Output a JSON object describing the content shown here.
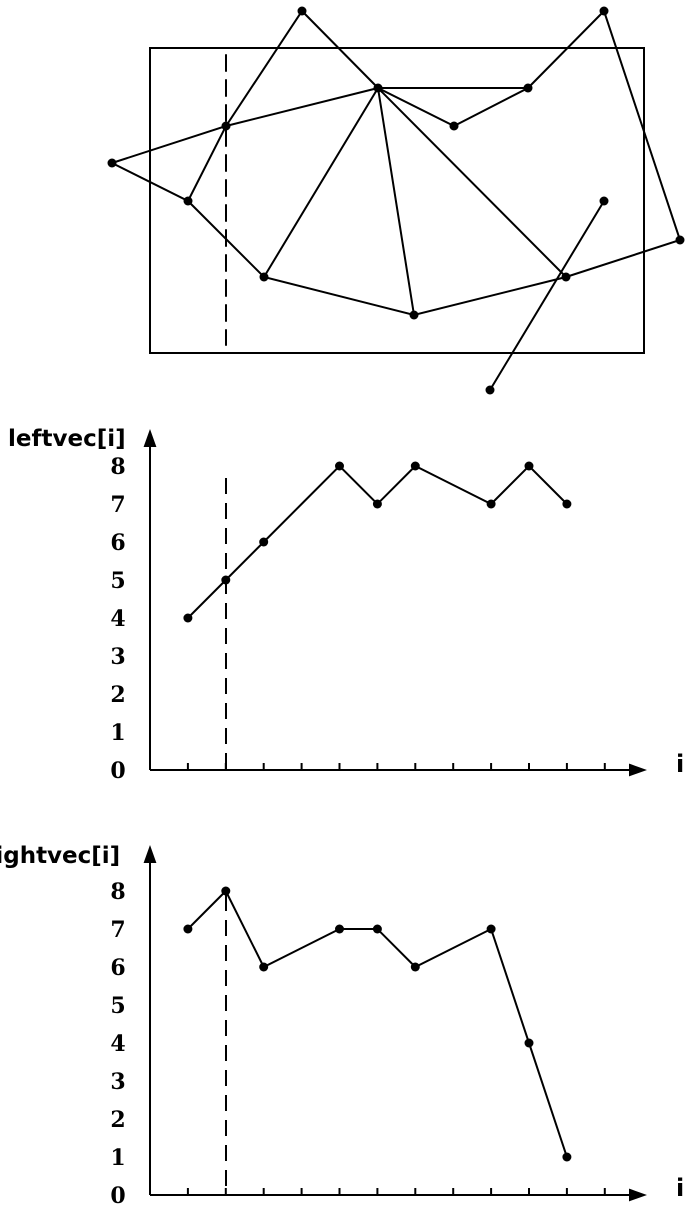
{
  "chart_data": [
    {
      "type": "line",
      "ylabel": "leftvec[i]",
      "xlabel": "i",
      "ylim": [
        0,
        8
      ],
      "yticks": [
        "0",
        "1",
        "2",
        "3",
        "4",
        "5",
        "6",
        "7",
        "8"
      ],
      "x": [
        1,
        2,
        3,
        4,
        5,
        6,
        7,
        8,
        9,
        10,
        11,
        12
      ],
      "values": [
        4,
        5,
        6,
        7,
        8,
        7,
        8,
        7.5,
        7,
        8,
        7,
        null
      ],
      "marker_x": [
        1,
        2,
        3,
        5,
        6,
        7,
        9,
        10,
        11
      ]
    },
    {
      "type": "line",
      "ylabel": "rightvec[i]",
      "xlabel": "i",
      "ylim": [
        0,
        8
      ],
      "yticks": [
        "0",
        "1",
        "2",
        "3",
        "4",
        "5",
        "6",
        "7",
        "8"
      ],
      "x": [
        1,
        2,
        3,
        4,
        5,
        6,
        7,
        8,
        9,
        10,
        11,
        12
      ],
      "values": [
        7,
        8,
        6,
        6.5,
        7,
        7,
        6,
        6.5,
        7,
        4,
        1,
        null
      ],
      "marker_x": [
        1,
        2,
        3,
        5,
        6,
        7,
        9,
        10,
        11
      ]
    }
  ],
  "colors": {
    "ink": "#000000",
    "background": "#ffffff"
  }
}
